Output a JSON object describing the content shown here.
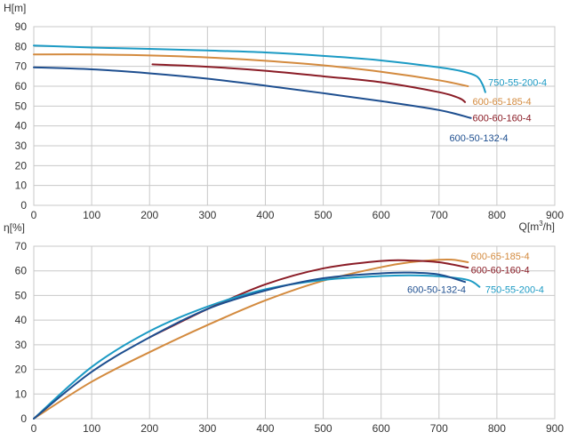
{
  "chart_data": [
    {
      "type": "line",
      "ylabel": "H[m]",
      "xlabel_prefix": "Q[m",
      "xlabel_sup": "3",
      "xlabel_suffix": "/h]",
      "xlim": [
        0,
        900
      ],
      "ylim": [
        0,
        90
      ],
      "xticks": [
        0,
        100,
        200,
        300,
        400,
        500,
        600,
        700,
        800,
        900
      ],
      "yticks": [
        0,
        10,
        20,
        30,
        40,
        50,
        60,
        70,
        80,
        90
      ],
      "grid": true,
      "series": [
        {
          "name": "750-55-200-4",
          "color": "#1b9ac4",
          "points": [
            [
              0,
              80.5
            ],
            [
              100,
              79.5
            ],
            [
              200,
              78.8
            ],
            [
              300,
              78
            ],
            [
              400,
              77
            ],
            [
              500,
              75.3
            ],
            [
              600,
              73
            ],
            [
              700,
              69.5
            ],
            [
              740,
              67.5
            ],
            [
              765,
              65
            ],
            [
              775,
              61
            ],
            [
              780,
              57
            ]
          ]
        },
        {
          "name": "600-65-185-4",
          "color": "#d38a3e",
          "points": [
            [
              0,
              76
            ],
            [
              100,
              76
            ],
            [
              200,
              75.5
            ],
            [
              300,
              74.5
            ],
            [
              400,
              72.8
            ],
            [
              500,
              70.5
            ],
            [
              600,
              67.3
            ],
            [
              700,
              63
            ],
            [
              750,
              60
            ]
          ]
        },
        {
          "name": "600-60-160-4",
          "color": "#8a1c26",
          "points": [
            [
              205,
              71
            ],
            [
              300,
              69.8
            ],
            [
              400,
              67.8
            ],
            [
              500,
              65
            ],
            [
              600,
              62
            ],
            [
              700,
              57
            ],
            [
              735,
              54
            ],
            [
              745,
              52
            ]
          ]
        },
        {
          "name": "600-50-132-4",
          "color": "#1d4e8f",
          "points": [
            [
              0,
              69.5
            ],
            [
              100,
              68.5
            ],
            [
              200,
              66.5
            ],
            [
              300,
              63.8
            ],
            [
              400,
              60.3
            ],
            [
              500,
              56.5
            ],
            [
              600,
              52.5
            ],
            [
              700,
              48
            ],
            [
              755,
              44
            ]
          ]
        }
      ]
    },
    {
      "type": "line",
      "ylabel": "η[%]",
      "xlim": [
        0,
        900
      ],
      "ylim": [
        0,
        70
      ],
      "xticks": [
        0,
        100,
        200,
        300,
        400,
        500,
        600,
        700,
        800,
        900
      ],
      "yticks": [
        0,
        10,
        20,
        30,
        40,
        50,
        60,
        70
      ],
      "grid": true,
      "series": [
        {
          "name": "600-65-185-4",
          "color": "#d38a3e",
          "points": [
            [
              0,
              0
            ],
            [
              100,
              15
            ],
            [
              200,
              27
            ],
            [
              300,
              38
            ],
            [
              400,
              48
            ],
            [
              500,
              56
            ],
            [
              600,
              61.5
            ],
            [
              650,
              63.5
            ],
            [
              700,
              64.5
            ],
            [
              725,
              64.5
            ],
            [
              750,
              63.5
            ]
          ]
        },
        {
          "name": "600-60-160-4",
          "color": "#8a1c26",
          "points": [
            [
              200,
              33
            ],
            [
              300,
              44.5
            ],
            [
              400,
              54.5
            ],
            [
              500,
              61
            ],
            [
              600,
              64
            ],
            [
              650,
              64.2
            ],
            [
              700,
              63.5
            ],
            [
              750,
              61.3
            ]
          ]
        },
        {
          "name": "750-55-200-4",
          "color": "#1b9ac4",
          "points": [
            [
              0,
              0
            ],
            [
              100,
              21
            ],
            [
              200,
              35.5
            ],
            [
              300,
              45.5
            ],
            [
              400,
              52.5
            ],
            [
              500,
              56.3
            ],
            [
              600,
              57.9
            ],
            [
              650,
              58.2
            ],
            [
              700,
              57.8
            ],
            [
              750,
              56.3
            ],
            [
              770,
              53.5
            ]
          ]
        },
        {
          "name": "600-50-132-4",
          "color": "#1d4e8f",
          "points": [
            [
              0,
              0
            ],
            [
              100,
              19
            ],
            [
              200,
              33
            ],
            [
              300,
              44.5
            ],
            [
              400,
              52
            ],
            [
              500,
              57
            ],
            [
              600,
              59
            ],
            [
              650,
              59.3
            ],
            [
              700,
              58.5
            ],
            [
              745,
              55.5
            ]
          ]
        }
      ]
    }
  ],
  "labels_top": [
    {
      "text": "750-55-200-4",
      "color": "#1b9ac4",
      "qx": 785,
      "hy": 62
    },
    {
      "text": "600-65-185-4",
      "color": "#d38a3e",
      "qx": 758,
      "hy": 52.5
    },
    {
      "text": "600-60-160-4",
      "color": "#8a1c26",
      "qx": 758,
      "hy": 44
    },
    {
      "text": "600-50-132-4",
      "color": "#1d4e8f",
      "qx": 718,
      "hy": 34
    }
  ],
  "labels_bottom": [
    {
      "text": "600-65-185-4",
      "color": "#d38a3e",
      "qx": 755,
      "hy": 66
    },
    {
      "text": "600-60-160-4",
      "color": "#8a1c26",
      "qx": 755,
      "hy": 60.5
    },
    {
      "text": "600-50-132-4",
      "color": "#1d4e8f",
      "qx": 645,
      "hy": 52.5
    },
    {
      "text": "750-55-200-4",
      "color": "#1b9ac4",
      "qx": 780,
      "hy": 52.5
    }
  ]
}
